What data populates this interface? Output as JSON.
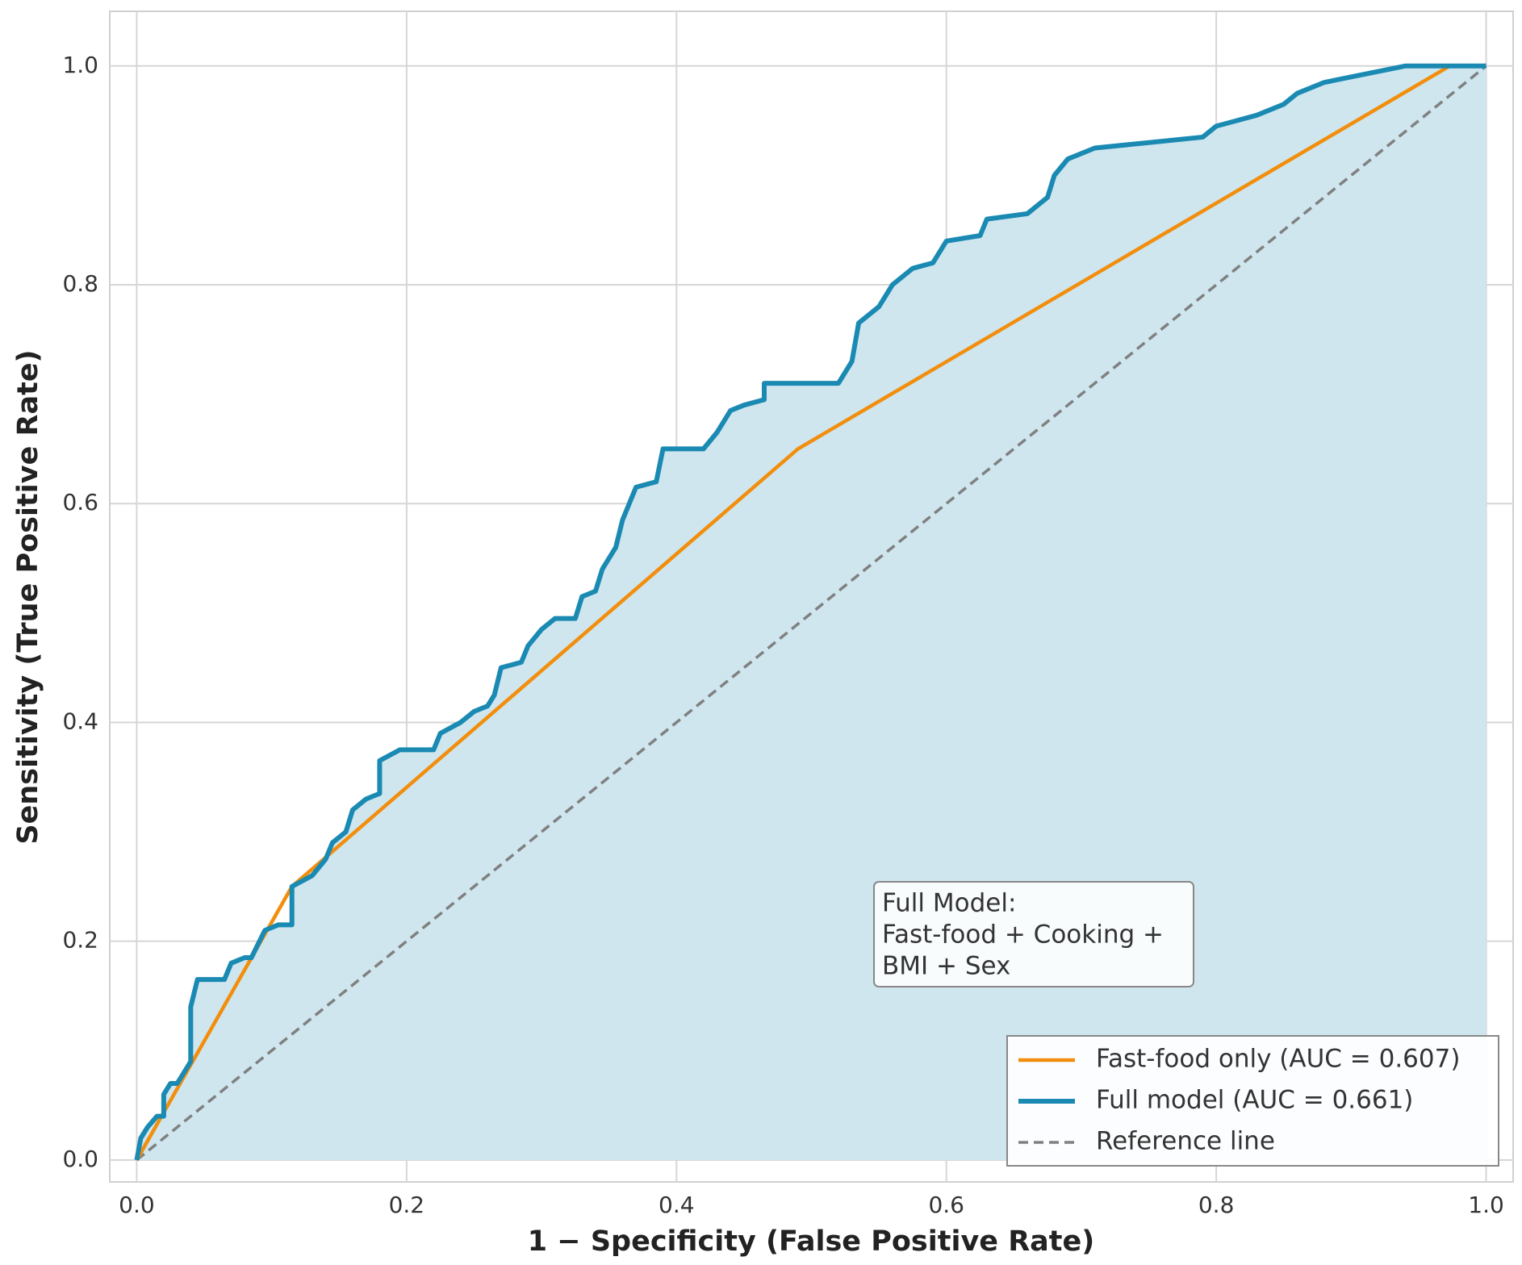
{
  "chart_data": {
    "type": "line",
    "xlabel": "1 − Specificity (False Positive Rate)",
    "ylabel": "Sensitivity (True Positive Rate)",
    "xlim": [
      -0.02,
      1.02
    ],
    "ylim": [
      -0.02,
      1.05
    ],
    "xticks": [
      {
        "value": 0,
        "label": "0.0"
      },
      0.2,
      0.4,
      0.6,
      0.8,
      {
        "value": 1,
        "label": "1.0"
      }
    ],
    "yticks": [
      {
        "value": 0,
        "label": "0.0"
      },
      0.2,
      0.4,
      0.6,
      0.8,
      {
        "value": 1,
        "label": "1.0"
      }
    ],
    "grid": true,
    "legend": "lower right",
    "annotation": [
      "Full Model:",
      "Fast-food + Cooking +",
      "BMI + Sex"
    ],
    "series": [
      {
        "name": "Fast-food only (AUC = 0.607)",
        "color": "#f28e0c",
        "style": "solid",
        "x": [
          0,
          0.115,
          0.49,
          0.973,
          1
        ],
        "values": [
          0,
          0.25,
          0.65,
          1,
          1
        ]
      },
      {
        "name": "Full model (AUC = 0.661)",
        "color": "#1a8ab3",
        "style": "solid",
        "fill": "#cfe6ef",
        "x": [
          0,
          0.003,
          0.008,
          0.015,
          0.02,
          0.02,
          0.025,
          0.03,
          0.035,
          0.04,
          0.04,
          0.045,
          0.065,
          0.07,
          0.08,
          0.085,
          0.095,
          0.105,
          0.115,
          0.115,
          0.13,
          0.14,
          0.145,
          0.155,
          0.16,
          0.17,
          0.18,
          0.18,
          0.195,
          0.22,
          0.225,
          0.24,
          0.25,
          0.26,
          0.265,
          0.27,
          0.285,
          0.29,
          0.3,
          0.31,
          0.325,
          0.33,
          0.34,
          0.345,
          0.355,
          0.36,
          0.37,
          0.385,
          0.39,
          0.42,
          0.43,
          0.44,
          0.45,
          0.465,
          0.465,
          0.52,
          0.53,
          0.535,
          0.55,
          0.56,
          0.575,
          0.59,
          0.6,
          0.625,
          0.63,
          0.66,
          0.675,
          0.68,
          0.69,
          0.71,
          0.75,
          0.79,
          0.8,
          0.83,
          0.85,
          0.86,
          0.88,
          0.9,
          0.94,
          1
        ],
        "values": [
          0,
          0.02,
          0.03,
          0.04,
          0.04,
          0.06,
          0.07,
          0.07,
          0.08,
          0.09,
          0.14,
          0.165,
          0.165,
          0.18,
          0.185,
          0.185,
          0.21,
          0.215,
          0.215,
          0.25,
          0.26,
          0.275,
          0.29,
          0.3,
          0.32,
          0.33,
          0.335,
          0.365,
          0.375,
          0.375,
          0.39,
          0.4,
          0.41,
          0.415,
          0.425,
          0.45,
          0.455,
          0.47,
          0.485,
          0.495,
          0.495,
          0.515,
          0.52,
          0.54,
          0.56,
          0.585,
          0.615,
          0.62,
          0.65,
          0.65,
          0.665,
          0.685,
          0.69,
          0.695,
          0.71,
          0.71,
          0.73,
          0.765,
          0.78,
          0.8,
          0.815,
          0.82,
          0.84,
          0.845,
          0.86,
          0.865,
          0.88,
          0.9,
          0.915,
          0.925,
          0.93,
          0.935,
          0.945,
          0.955,
          0.965,
          0.975,
          0.985,
          0.99,
          1,
          1
        ]
      },
      {
        "name": "Reference line",
        "color": "#808080",
        "style": "dashed",
        "x": [
          0,
          1
        ],
        "values": [
          0,
          1
        ]
      }
    ]
  }
}
